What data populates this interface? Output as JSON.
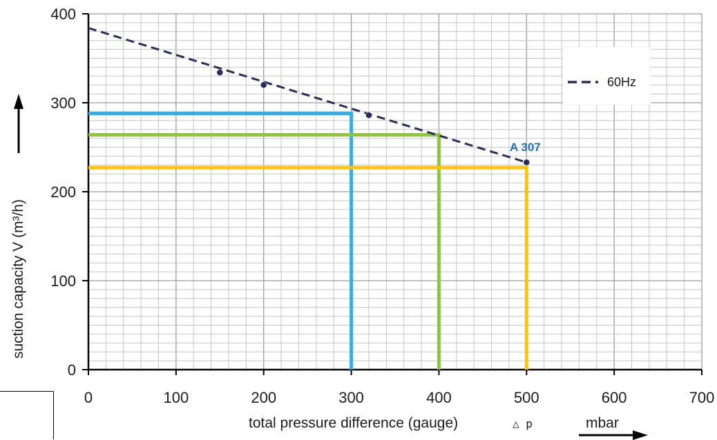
{
  "chart_data": {
    "type": "line",
    "xlabel": "total pressure difference (gauge)",
    "x_symbol": "△ p",
    "x_unit": "mbar",
    "ylabel": "suction capacity V (m³/h)",
    "xlim": [
      0,
      700
    ],
    "ylim": [
      0,
      400
    ],
    "x_ticks": [
      "0",
      "100",
      "200",
      "300",
      "400",
      "500",
      "600",
      "700"
    ],
    "y_ticks": [
      "0",
      "100",
      "200",
      "300",
      "400"
    ],
    "x_tick_values": [
      0,
      100,
      200,
      300,
      400,
      500,
      600,
      700
    ],
    "y_tick_values": [
      0,
      100,
      200,
      300,
      400
    ],
    "grid": true,
    "legend": {
      "position": "top-right",
      "entries": [
        "60Hz"
      ]
    },
    "series": [
      {
        "name": "60Hz",
        "style": "dashed",
        "color": "#2a2a5e",
        "line": {
          "x": [
            0,
            500
          ],
          "y": [
            384,
            233
          ]
        },
        "points": {
          "x": [
            150,
            200,
            320,
            500
          ],
          "y": [
            334,
            320,
            286,
            233
          ]
        }
      }
    ],
    "reference_lines": [
      {
        "color": "#2eb1e8",
        "x": 300,
        "y": 288
      },
      {
        "color": "#8cc63e",
        "x": 400,
        "y": 264
      },
      {
        "color": "#ffc20e",
        "x": 500,
        "y": 227
      }
    ],
    "annotations": [
      {
        "text": "A 307",
        "x": 500,
        "y": 233,
        "color": "#1e6fb5"
      }
    ]
  }
}
